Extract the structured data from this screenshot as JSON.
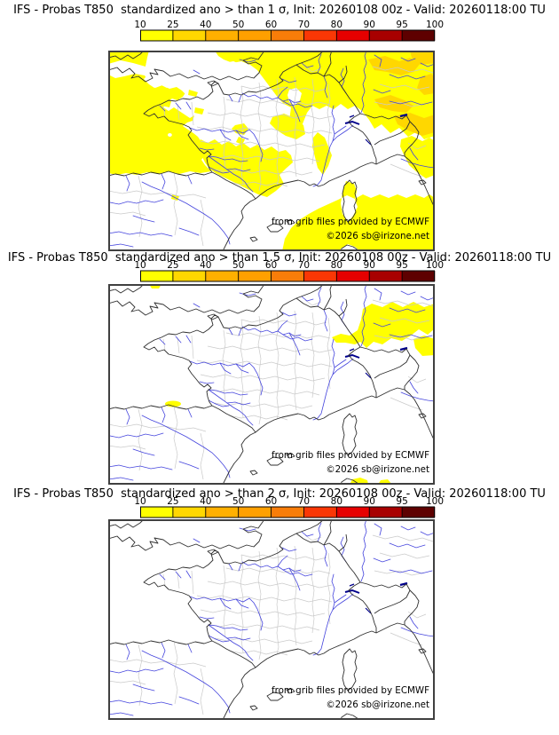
{
  "panels": [
    {
      "id": "sigma-1",
      "title": "IFS - Probas T850  standardized ano > than 1 σ, Init: 20260108 00z - Valid: 20260118:00 TU",
      "threshold_sigma": "1",
      "overlay": "sigma1"
    },
    {
      "id": "sigma-15",
      "title": "IFS - Probas T850  standardized ano > than 1.5 σ, Init: 20260108 00z - Valid: 20260118:00 TU",
      "threshold_sigma": "1.5",
      "overlay": "sigma15"
    },
    {
      "id": "sigma-2",
      "title": "IFS - Probas T850  standardized ano > than 2 σ, Init: 20260108 00z - Valid: 20260118:00 TU",
      "threshold_sigma": "2",
      "overlay": "sigma2"
    }
  ],
  "colorbar": {
    "tick_labels": [
      "10",
      "25",
      "40",
      "50",
      "60",
      "70",
      "80",
      "90",
      "95",
      "100"
    ],
    "segment_colors": [
      "#ffff00",
      "#ffd700",
      "#ffb000",
      "#ffa000",
      "#f87d09",
      "#fa3705",
      "#e60000",
      "#a80000",
      "#5e0000"
    ]
  },
  "credits": {
    "line1": "from grib files provided by ECMWF",
    "line2": "©2026 sb@irizone.net"
  },
  "map": {
    "region": "France and western Europe",
    "line_colors": {
      "coast": "#2f2f2f",
      "rivers": "#4444dd",
      "departments": "#cacaca",
      "lakes": "#00008b"
    },
    "overlay_colors": {
      "prob_10_25": "#ffff00",
      "prob_25_40": "#ffd700"
    }
  }
}
